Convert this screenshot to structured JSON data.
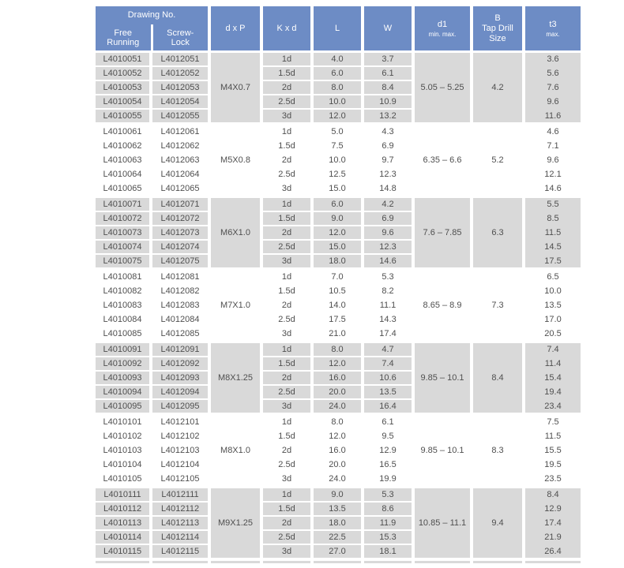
{
  "header": {
    "drawing_group": "Drawing No.",
    "free_running": "Free\nRunning",
    "screw_lock": "Screw-\nLock",
    "dxp": "d x P",
    "kxd": "K x d",
    "l": "L",
    "w": "W",
    "d1": "d1",
    "d1_sub": "min. max.",
    "tap_drill": "B\nTap Drill\nSize",
    "t3": "t3",
    "t3_sub": "max."
  },
  "colors": {
    "header_blue": "#6d8cc5",
    "shade_gray": "#d9d9d9",
    "data_text": "#4f4f4f"
  },
  "blocks": [
    {
      "dxp": "M4X0.7",
      "d1": "5.05 – 5.25",
      "tap_drill": "4.2",
      "shaded": true,
      "rows": [
        [
          "L4010051",
          "L4012051",
          "1d",
          "4.0",
          "3.7",
          "3.6"
        ],
        [
          "L4010052",
          "L4012052",
          "1.5d",
          "6.0",
          "6.1",
          "5.6"
        ],
        [
          "L4010053",
          "L4012053",
          "2d",
          "8.0",
          "8.4",
          "7.6"
        ],
        [
          "L4010054",
          "L4012054",
          "2.5d",
          "10.0",
          "10.9",
          "9.6"
        ],
        [
          "L4010055",
          "L4012055",
          "3d",
          "12.0",
          "13.2",
          "11.6"
        ]
      ]
    },
    {
      "dxp": "M5X0.8",
      "d1": "6.35 – 6.6",
      "tap_drill": "5.2",
      "shaded": false,
      "rows": [
        [
          "L4010061",
          "L4012061",
          "1d",
          "5.0",
          "4.3",
          "4.6"
        ],
        [
          "L4010062",
          "L4012062",
          "1.5d",
          "7.5",
          "6.9",
          "7.1"
        ],
        [
          "L4010063",
          "L4012063",
          "2d",
          "10.0",
          "9.7",
          "9.6"
        ],
        [
          "L4010064",
          "L4012064",
          "2.5d",
          "12.5",
          "12.3",
          "12.1"
        ],
        [
          "L4010065",
          "L4012065",
          "3d",
          "15.0",
          "14.8",
          "14.6"
        ]
      ]
    },
    {
      "dxp": "M6X1.0",
      "d1": "7.6 – 7.85",
      "tap_drill": "6.3",
      "shaded": true,
      "rows": [
        [
          "L4010071",
          "L4012071",
          "1d",
          "6.0",
          "4.2",
          "5.5"
        ],
        [
          "L4010072",
          "L4012072",
          "1.5d",
          "9.0",
          "6.9",
          "8.5"
        ],
        [
          "L4010073",
          "L4012073",
          "2d",
          "12.0",
          "9.6",
          "11.5"
        ],
        [
          "L4010074",
          "L4012074",
          "2.5d",
          "15.0",
          "12.3",
          "14.5"
        ],
        [
          "L4010075",
          "L4012075",
          "3d",
          "18.0",
          "14.6",
          "17.5"
        ]
      ]
    },
    {
      "dxp": "M7X1.0",
      "d1": "8.65 – 8.9",
      "tap_drill": "7.3",
      "shaded": false,
      "rows": [
        [
          "L4010081",
          "L4012081",
          "1d",
          "7.0",
          "5.3",
          "6.5"
        ],
        [
          "L4010082",
          "L4012082",
          "1.5d",
          "10.5",
          "8.2",
          "10.0"
        ],
        [
          "L4010083",
          "L4012083",
          "2d",
          "14.0",
          "11.1",
          "13.5"
        ],
        [
          "L4010084",
          "L4012084",
          "2.5d",
          "17.5",
          "14.3",
          "17.0"
        ],
        [
          "L4010085",
          "L4012085",
          "3d",
          "21.0",
          "17.4",
          "20.5"
        ]
      ]
    },
    {
      "dxp": "M8X1.25",
      "d1": "9.85 – 10.1",
      "tap_drill": "8.4",
      "shaded": true,
      "rows": [
        [
          "L4010091",
          "L4012091",
          "1d",
          "8.0",
          "4.7",
          "7.4"
        ],
        [
          "L4010092",
          "L4012092",
          "1.5d",
          "12.0",
          "7.4",
          "11.4"
        ],
        [
          "L4010093",
          "L4012093",
          "2d",
          "16.0",
          "10.6",
          "15.4"
        ],
        [
          "L4010094",
          "L4012094",
          "2.5d",
          "20.0",
          "13.5",
          "19.4"
        ],
        [
          "L4010095",
          "L4012095",
          "3d",
          "24.0",
          "16.4",
          "23.4"
        ]
      ]
    },
    {
      "dxp": "M8X1.0",
      "d1": "9.85 – 10.1",
      "tap_drill": "8.3",
      "shaded": false,
      "rows": [
        [
          "L4010101",
          "L4012101",
          "1d",
          "8.0",
          "6.1",
          "7.5"
        ],
        [
          "L4010102",
          "L4012102",
          "1.5d",
          "12.0",
          "9.5",
          "11.5"
        ],
        [
          "L4010103",
          "L4012103",
          "2d",
          "16.0",
          "12.9",
          "15.5"
        ],
        [
          "L4010104",
          "L4012104",
          "2.5d",
          "20.0",
          "16.5",
          "19.5"
        ],
        [
          "L4010105",
          "L4012105",
          "3d",
          "24.0",
          "19.9",
          "23.5"
        ]
      ]
    },
    {
      "dxp": "M9X1.25",
      "d1": "10.85 – 11.1",
      "tap_drill": "9.4",
      "shaded": true,
      "rows": [
        [
          "L4010111",
          "L4012111",
          "1d",
          "9.0",
          "5.3",
          "8.4"
        ],
        [
          "L4010112",
          "L4012112",
          "1.5d",
          "13.5",
          "8.6",
          "12.9"
        ],
        [
          "L4010113",
          "L4012113",
          "2d",
          "18.0",
          "11.9",
          "17.4"
        ],
        [
          "L4010114",
          "L4012114",
          "2.5d",
          "22.5",
          "15.3",
          "21.9"
        ],
        [
          "L4010115",
          "L4012115",
          "3d",
          "27.0",
          "18.1",
          "26.4"
        ]
      ]
    }
  ]
}
